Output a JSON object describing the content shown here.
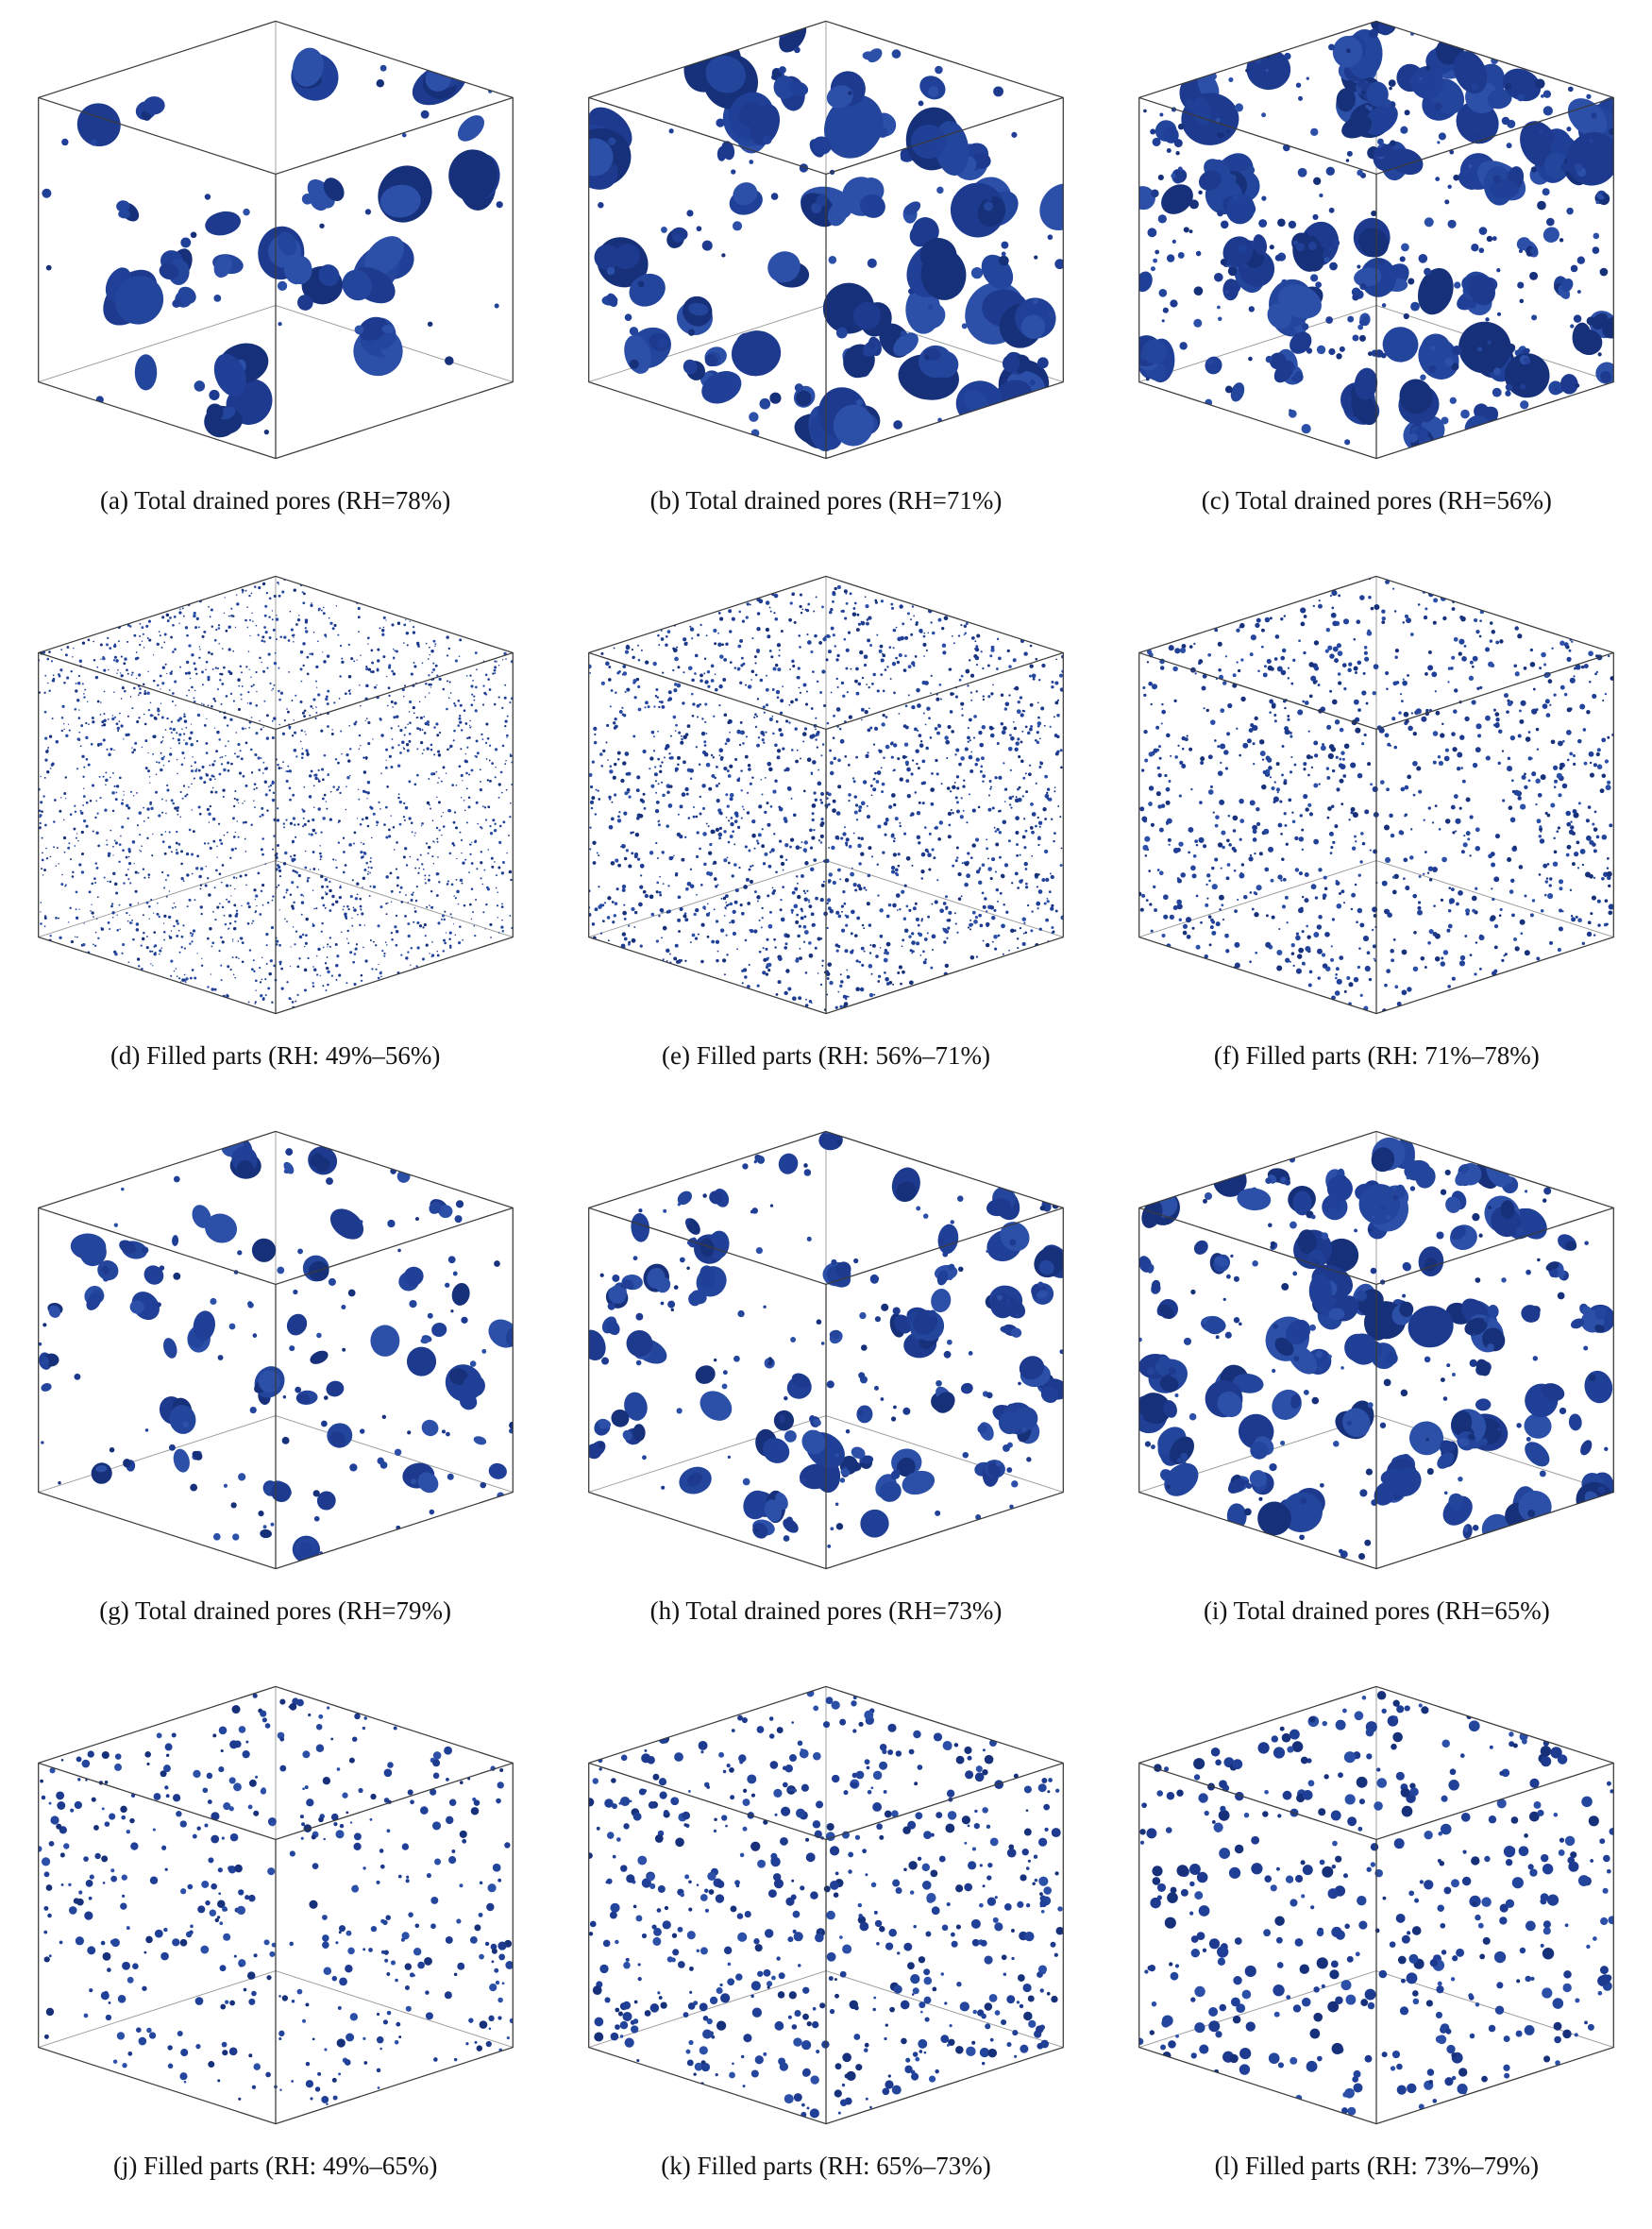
{
  "figure": {
    "colors": {
      "background": "#ffffff",
      "wire": "#3a3a3a",
      "wire_hidden": "#9a9a9a",
      "text": "#111111",
      "blob_palette": [
        "#1d3a8e",
        "#24459c",
        "#2c4fa8",
        "#17307a",
        "#203f96"
      ]
    },
    "panels": [
      {
        "id": "a",
        "caption": "(a) Total drained pores (RH=78%)",
        "render": {
          "seed": 11,
          "clusters": 26,
          "rmin": 10,
          "rmax": 40,
          "sat": 4,
          "dots": 30,
          "drmin": 2,
          "drmax": 6
        }
      },
      {
        "id": "b",
        "caption": "(b) Total drained pores (RH=71%)",
        "render": {
          "seed": 22,
          "clusters": 60,
          "rmin": 8,
          "rmax": 36,
          "sat": 4,
          "dots": 70,
          "drmin": 2,
          "drmax": 6
        }
      },
      {
        "id": "c",
        "caption": "(c) Total drained pores (RH=56%)",
        "render": {
          "seed": 33,
          "clusters": 85,
          "rmin": 6,
          "rmax": 30,
          "sat": 4,
          "dots": 260,
          "drmin": 1.5,
          "drmax": 5
        }
      },
      {
        "id": "d",
        "caption": "(d) Filled parts (RH: 49%–56%)",
        "render": {
          "seed": 44,
          "clusters": 0,
          "rmin": 0,
          "rmax": 0,
          "sat": 0,
          "dots": 2100,
          "drmin": 0.6,
          "drmax": 1.7
        }
      },
      {
        "id": "e",
        "caption": "(e) Filled parts (RH: 56%–71%)",
        "render": {
          "seed": 55,
          "clusters": 0,
          "rmin": 0,
          "rmax": 0,
          "sat": 0,
          "dots": 1750,
          "drmin": 0.8,
          "drmax": 2.3
        }
      },
      {
        "id": "f",
        "caption": "(f) Filled parts (RH: 71%–78%)",
        "render": {
          "seed": 66,
          "clusters": 0,
          "rmin": 0,
          "rmax": 0,
          "sat": 0,
          "dots": 1050,
          "drmin": 1.0,
          "drmax": 3.0
        }
      },
      {
        "id": "g",
        "caption": "(g) Total drained pores (RH=79%)",
        "render": {
          "seed": 77,
          "clusters": 55,
          "rmin": 5,
          "rmax": 20,
          "sat": 3,
          "dots": 90,
          "drmin": 1.5,
          "drmax": 4
        }
      },
      {
        "id": "h",
        "caption": "(h) Total drained pores (RH=73%)",
        "render": {
          "seed": 88,
          "clusters": 80,
          "rmin": 5,
          "rmax": 22,
          "sat": 3,
          "dots": 110,
          "drmin": 1.5,
          "drmax": 4
        }
      },
      {
        "id": "i",
        "caption": "(i) Total drained pores (RH=65%)",
        "render": {
          "seed": 99,
          "clusters": 115,
          "rmin": 5,
          "rmax": 24,
          "sat": 3,
          "dots": 130,
          "drmin": 1.5,
          "drmax": 4
        }
      },
      {
        "id": "j",
        "caption": "(j) Filled parts (RH: 49%–65%)",
        "render": {
          "seed": 111,
          "clusters": 0,
          "rmin": 0,
          "rmax": 0,
          "sat": 0,
          "dots": 440,
          "drmin": 1.2,
          "drmax": 4.5
        }
      },
      {
        "id": "k",
        "caption": "(k) Filled parts (RH: 65%–73%)",
        "render": {
          "seed": 122,
          "clusters": 0,
          "rmin": 0,
          "rmax": 0,
          "sat": 0,
          "dots": 580,
          "drmin": 1.2,
          "drmax": 5
        }
      },
      {
        "id": "l",
        "caption": "(l) Filled parts (RH: 73%–79%)",
        "render": {
          "seed": 133,
          "clusters": 0,
          "rmin": 0,
          "rmax": 0,
          "sat": 0,
          "dots": 420,
          "drmin": 1.8,
          "drmax": 6
        }
      }
    ]
  }
}
